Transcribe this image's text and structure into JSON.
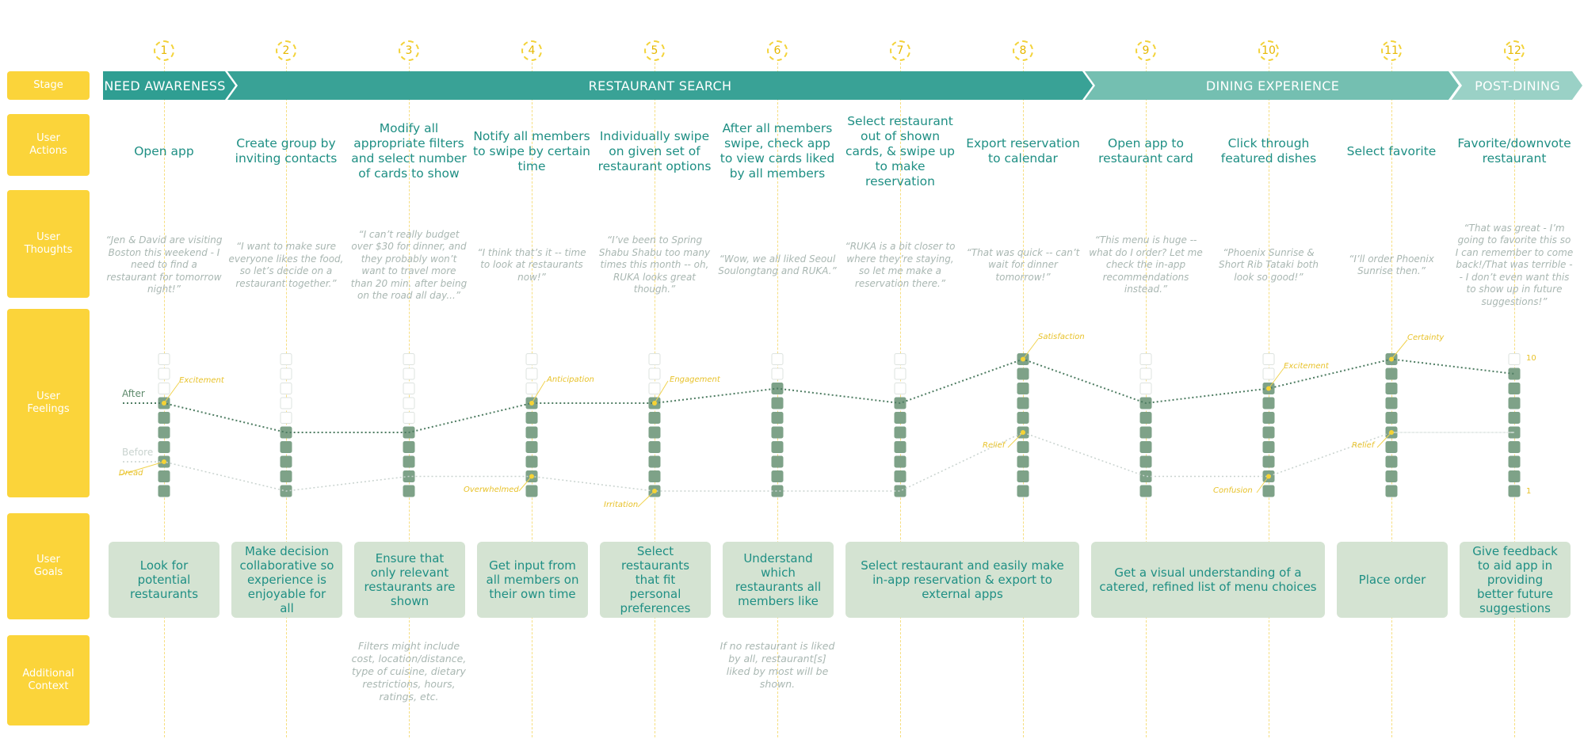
{
  "row_labels": {
    "stage": "Stage",
    "user_actions": "User\nActions",
    "user_thoughts": "User\nThoughts",
    "user_feelings": "User\nFeelings",
    "user_goals": "User\nGoals",
    "additional_context": "Additional\nContext"
  },
  "step_numbers": [
    "1",
    "2",
    "3",
    "4",
    "5",
    "6",
    "7",
    "8",
    "9",
    "10",
    "11",
    "12"
  ],
  "stages": {
    "need_awareness": "NEED AWARENESS",
    "restaurant_search": "RESTAURANT SEARCH",
    "dining_experience": "DINING EXPERIENCE",
    "post_dining": "POST-DINING"
  },
  "actions": [
    "Open app",
    "Create group by inviting contacts",
    "Modify all appropriate filters and select number of cards to show",
    "Notify all members to swipe by certain time",
    "Individually swipe on given set of restaurant options",
    "After all members swipe, check app to view cards liked by all members",
    "Select restaurant out of shown cards, & swipe up to make reservation",
    "Export reservation to calendar",
    "Open app to restaurant card",
    "Click through featured dishes",
    "Select favorite",
    "Favorite/downvote restaurant"
  ],
  "thoughts": [
    "“Jen & David are visiting Boston this weekend - I need to find a restaurant for tomorrow night!”",
    "“I want to make sure everyone likes the food, so let’s decide on a restaurant together.”",
    "“I can’t really budget over $30 for dinner, and they probably won’t want to travel more than 20 min. after being on the road all day...”",
    "“I think that’s it -- time to look at restaurants now!”",
    "“I’ve been to Spring Shabu Shabu too many times this month -- oh, RUKA looks great though.”",
    "“Wow, we all liked Seoul Soulongtang and RUKA.”",
    "“RUKA is a bit closer to where they’re staying, so let me make a reservation there.”",
    "“That was quick -- can’t wait for dinner tomorrow!”",
    "“This menu is huge -- what do I order? Let me check the in-app recommendations instead.”",
    "“Phoenix Sunrise & Short Rib Tataki both look so good!”",
    "“I’ll order Phoenix Sunrise then.”",
    "“That was great - I’m going to favorite this so I can remember to come back!/That was terrible -- I don’t even want this to show up in future suggestions!”"
  ],
  "feelings": {
    "after_label": "After",
    "before_label": "Before",
    "scale_max": "10",
    "scale_min": "1",
    "emotions": {
      "excitement": "Excitement",
      "dread": "Dread",
      "anticipation": "Anticipation",
      "overwhelmed": "Overwhelmed",
      "engagement": "Engagement",
      "irritation": "Irritation",
      "satisfaction": "Satisfaction",
      "relief_8": "Relief",
      "excitement_10": "Excitement",
      "confusion": "Confusion",
      "certainty": "Certainty",
      "relief_11": "Relief"
    }
  },
  "chart_data": {
    "type": "line",
    "x": [
      1,
      2,
      3,
      4,
      5,
      6,
      7,
      8,
      9,
      10,
      11,
      12
    ],
    "ylim": [
      1,
      10
    ],
    "series": [
      {
        "name": "After",
        "values": [
          7,
          5,
          5,
          7,
          7,
          8,
          7,
          10,
          7,
          8,
          10,
          9
        ]
      },
      {
        "name": "Before",
        "values": [
          3,
          1,
          2,
          2,
          1,
          1,
          1,
          5,
          2,
          2,
          5,
          5
        ]
      }
    ]
  },
  "goals": {
    "g1": "Look for potential restaurants",
    "g2": "Make decision collaborative so experience is enjoyable for all",
    "g3": "Ensure that only relevant restaurants are shown",
    "g4": "Get input from all members on their own time",
    "g5": "Select restaurants that fit personal preferences",
    "g6": "Understand which restaurants all members like",
    "g7": "Select restaurant and easily make in-app reservation & export to external apps",
    "g8": "Get a visual understanding of a catered, refined list of menu choices",
    "g9": "Place order",
    "g10": "Give feedback to aid app in providing better future suggestions"
  },
  "context": {
    "filters": "Filters might include cost, location/distance, type of cuisine, dietary restrictions, hours, ratings, etc.",
    "no_restaurant": "If no restaurant is liked by all, restaurant[s] liked by most will be shown."
  },
  "colors": {
    "yellow": "#fbd43a",
    "teal_dark": "#2f9e92",
    "teal_mid": "#5db6a8",
    "teal_light": "#8ccabd",
    "sage": "#7ea288",
    "goal_bg": "#d4e3d2"
  }
}
